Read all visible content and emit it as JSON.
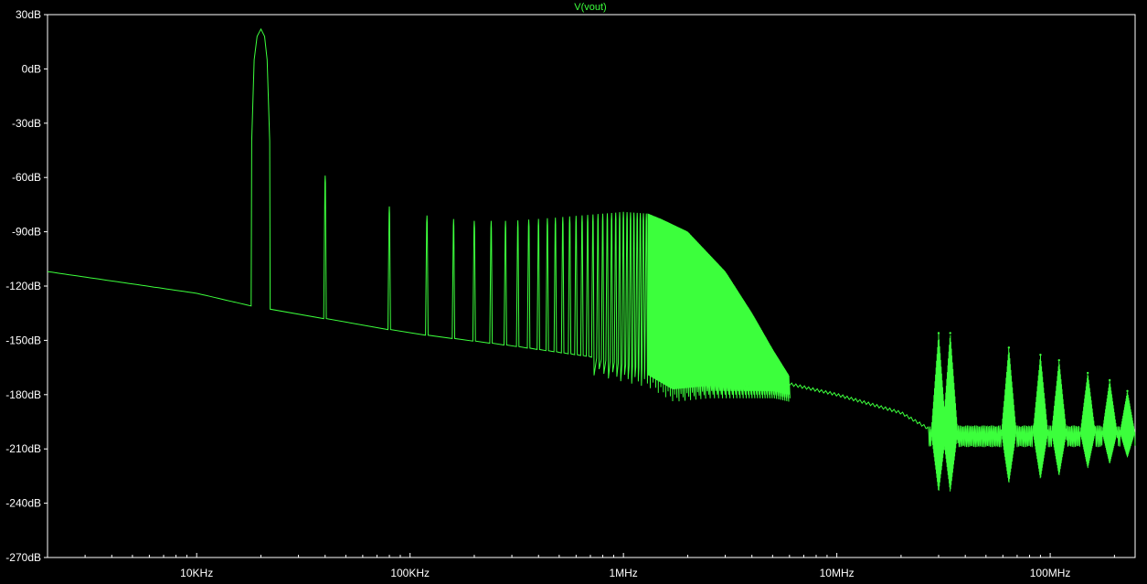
{
  "chart_data": {
    "type": "line",
    "title": "V(vout)",
    "x_scale": "log",
    "x_unit": "Hz",
    "xlim": [
      2000,
      250000000
    ],
    "ylim": [
      -270,
      30
    ],
    "y_unit": "dB",
    "grid": false,
    "y_ticks": [
      {
        "value": 30,
        "label": "30dB"
      },
      {
        "value": 0,
        "label": "0dB"
      },
      {
        "value": -30,
        "label": "-30dB"
      },
      {
        "value": -60,
        "label": "-60dB"
      },
      {
        "value": -90,
        "label": "-90dB"
      },
      {
        "value": -120,
        "label": "-120dB"
      },
      {
        "value": -150,
        "label": "-150dB"
      },
      {
        "value": -180,
        "label": "-180dB"
      },
      {
        "value": -210,
        "label": "-210dB"
      },
      {
        "value": -240,
        "label": "-240dB"
      },
      {
        "value": -270,
        "label": "-270dB"
      }
    ],
    "x_ticks": [
      {
        "value": 10000,
        "label": "10KHz"
      },
      {
        "value": 100000,
        "label": "100KHz"
      },
      {
        "value": 1000000,
        "label": "1MHz"
      },
      {
        "value": 10000000,
        "label": "10MHz"
      },
      {
        "value": 100000000,
        "label": "100MHz"
      }
    ],
    "series": [
      {
        "color": "#3cff3c",
        "noise_floor": {
          "x": [
            2000,
            10000,
            18000,
            40000,
            100000,
            300000,
            700000,
            1300000,
            1700000,
            2500000,
            5000000,
            10000000,
            20000000,
            30000000
          ],
          "y": [
            -112,
            -124,
            -131,
            -138,
            -146,
            -153,
            -159,
            -166,
            -174,
            -172,
            -172,
            -180,
            -190,
            -202
          ]
        },
        "fundamental": {
          "x": 20000,
          "y": 22
        },
        "harmonic_peaks": {
          "x": [
            40000,
            60000,
            80000,
            100000,
            120000,
            140000,
            160000,
            180000,
            200000,
            300000,
            500000,
            800000,
            1000000,
            1300000,
            1500000,
            2000000,
            3000000,
            4000000,
            5000000,
            6000000
          ],
          "y": [
            -59,
            -70,
            -76,
            -79,
            -81,
            -82,
            -83,
            -83,
            -84,
            -84,
            -82,
            -80,
            -79,
            -80,
            -83,
            -90,
            -112,
            -135,
            -155,
            -170
          ]
        },
        "hf_bursts": [
          {
            "x": 30000000,
            "y": -146
          },
          {
            "x": 34000000,
            "y": -146
          },
          {
            "x": 64000000,
            "y": -154
          },
          {
            "x": 90000000,
            "y": -158
          },
          {
            "x": 110000000,
            "y": -161
          },
          {
            "x": 150000000,
            "y": -168
          },
          {
            "x": 190000000,
            "y": -172
          },
          {
            "x": 230000000,
            "y": -178
          }
        ]
      }
    ]
  }
}
